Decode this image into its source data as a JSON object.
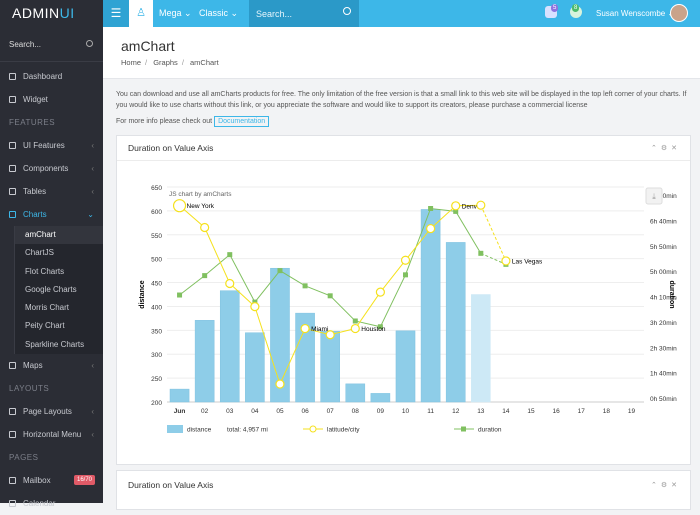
{
  "brand": {
    "main": "ADMIN",
    "accent": "UI"
  },
  "topbar": {
    "mega_label": "Mega ⌄",
    "classic_label": "Classic ⌄",
    "search_placeholder": "Search...",
    "notif1_count": "5",
    "notif2_count": "8",
    "user_name": "Susan Wenscombe ⌄"
  },
  "sidebar": {
    "search_placeholder": "Search...",
    "dashboard": "Dashboard",
    "widget": "Widget",
    "features_section": "FEATURES",
    "ui_features": "UI Features",
    "components": "Components",
    "tables": "Tables",
    "charts": "Charts",
    "sub": [
      "amChart",
      "ChartJS",
      "Flot Charts",
      "Google Charts",
      "Morris Chart",
      "Peity Chart",
      "Sparkline Charts"
    ],
    "maps": "Maps",
    "layouts_section": "LAYOUTS",
    "page_layouts": "Page Layouts",
    "horizontal_menu": "Horizontal Menu",
    "pages_section": "PAGES",
    "mailbox": "Mailbox",
    "mailbox_badge": "16/70",
    "calendar": "Calendar"
  },
  "page": {
    "title": "amChart",
    "breadcrumb": [
      "Home",
      "Graphs",
      "amChart"
    ],
    "intro": "You can download and use all amCharts products for free. The only limitation of the free version is that a small link to this web site will be displayed in the top left corner of your charts. If you would like to use charts without this link, or you appreciate the software and would like to support its creators, please purchase a commercial license",
    "more_info": "For more info please check out",
    "doc_button": "Documentation",
    "panel1_title": "Duration on Value Axis",
    "panel2_title": "Duration on Value Axis"
  },
  "chart_data": {
    "type": "bar",
    "credit": "JS chart by amCharts",
    "categories": [
      "Jun",
      "02",
      "03",
      "04",
      "05",
      "06",
      "07",
      "08",
      "09",
      "10",
      "11",
      "12",
      "13",
      "14",
      "15",
      "16",
      "17",
      "18",
      "19"
    ],
    "y_left": {
      "label": "distance",
      "ticks": [
        200,
        250,
        300,
        350,
        400,
        450,
        500,
        550,
        600,
        650
      ],
      "range": [
        200,
        650
      ]
    },
    "y_right": {
      "label": "duration",
      "ticks": [
        "0h 50min",
        "1h 40min",
        "2h 30min",
        "3h 20min",
        "4h 10min",
        "5h 00min",
        "5h 50min",
        "6h 40min",
        "7h 30min"
      ],
      "range_minutes": [
        0,
        820
      ]
    },
    "series": [
      {
        "name": "distance",
        "kind": "bar",
        "color": "#8ecde8",
        "values": [
          227,
          371,
          433,
          345,
          480,
          386,
          348,
          238,
          218,
          349,
          603,
          534,
          425,
          null,
          null,
          null,
          null,
          null,
          null
        ],
        "future_from_index": 12
      },
      {
        "name": "latitude/city",
        "kind": "line",
        "color": "#f5e11d",
        "values": [
          40.71,
          38.89,
          34.22,
          32.29,
          25.83,
          30.46,
          29.94,
          30.46,
          33.5,
          36.16,
          38.8,
          40.7,
          40.75,
          36.1,
          null,
          null,
          null,
          null,
          null
        ],
        "labels": {
          "0": "New York",
          "5": "Miami",
          "7": "Houston",
          "11": "Denver",
          "13": "Las Vegas"
        }
      },
      {
        "name": "duration",
        "kind": "line",
        "color": "#80c060",
        "values": [
          408,
          482,
          562,
          381,
          501,
          443,
          405,
          309,
          287,
          485,
          738,
          727,
          567,
          525,
          null,
          null,
          null,
          null,
          null
        ]
      }
    ],
    "legend": [
      {
        "label": "distance",
        "value": "total: 4,957 mi"
      },
      {
        "label": "latitude/city",
        "value": ""
      },
      {
        "label": "duration",
        "value": ""
      }
    ]
  }
}
